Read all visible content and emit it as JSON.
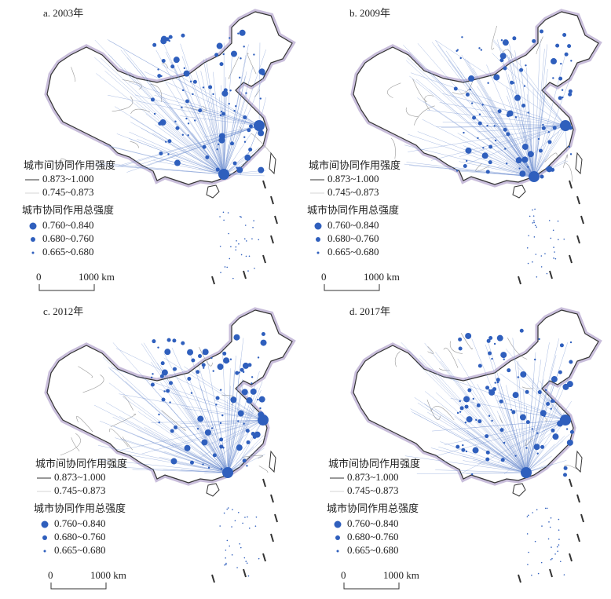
{
  "panels": [
    {
      "label": "a. 2003年",
      "legend": {
        "link_title": "城市间协同作用强度",
        "link_items": [
          "0.873~1.000",
          "0.745~0.873"
        ],
        "node_title": "城市协同作用总强度",
        "node_items": [
          "0.760~0.840",
          "0.680~0.760",
          "0.665~0.680"
        ]
      },
      "scale": {
        "zero": "0",
        "distance": "1000 km"
      }
    },
    {
      "label": "b. 2009年",
      "legend": {
        "link_title": "城市间协同作用强度",
        "link_items": [
          "0.873~1.000",
          "0.745~0.873"
        ],
        "node_title": "城市协同作用总强度",
        "node_items": [
          "0.760~0.840",
          "0.680~0.760",
          "0.665~0.680"
        ]
      },
      "scale": {
        "zero": "0",
        "distance": "1000 km"
      }
    },
    {
      "label": "c. 2012年",
      "legend": {
        "link_title": "城市间协同作用强度",
        "link_items": [
          "0.873~1.000",
          "0.745~0.873"
        ],
        "node_title": "城市协同作用总强度",
        "node_items": [
          "0.760~0.840",
          "0.680~0.760",
          "0.665~0.680"
        ]
      },
      "scale": {
        "zero": "0",
        "distance": "1000 km"
      }
    },
    {
      "label": "d. 2017年",
      "legend": {
        "link_title": "城市间协同作用强度",
        "link_items": [
          "0.873~1.000",
          "0.745~0.873"
        ],
        "node_title": "城市协同作用总强度",
        "node_items": [
          "0.760~0.840",
          "0.680~0.760",
          "0.665~0.680"
        ]
      },
      "scale": {
        "zero": "0",
        "distance": "1000 km"
      }
    }
  ]
}
